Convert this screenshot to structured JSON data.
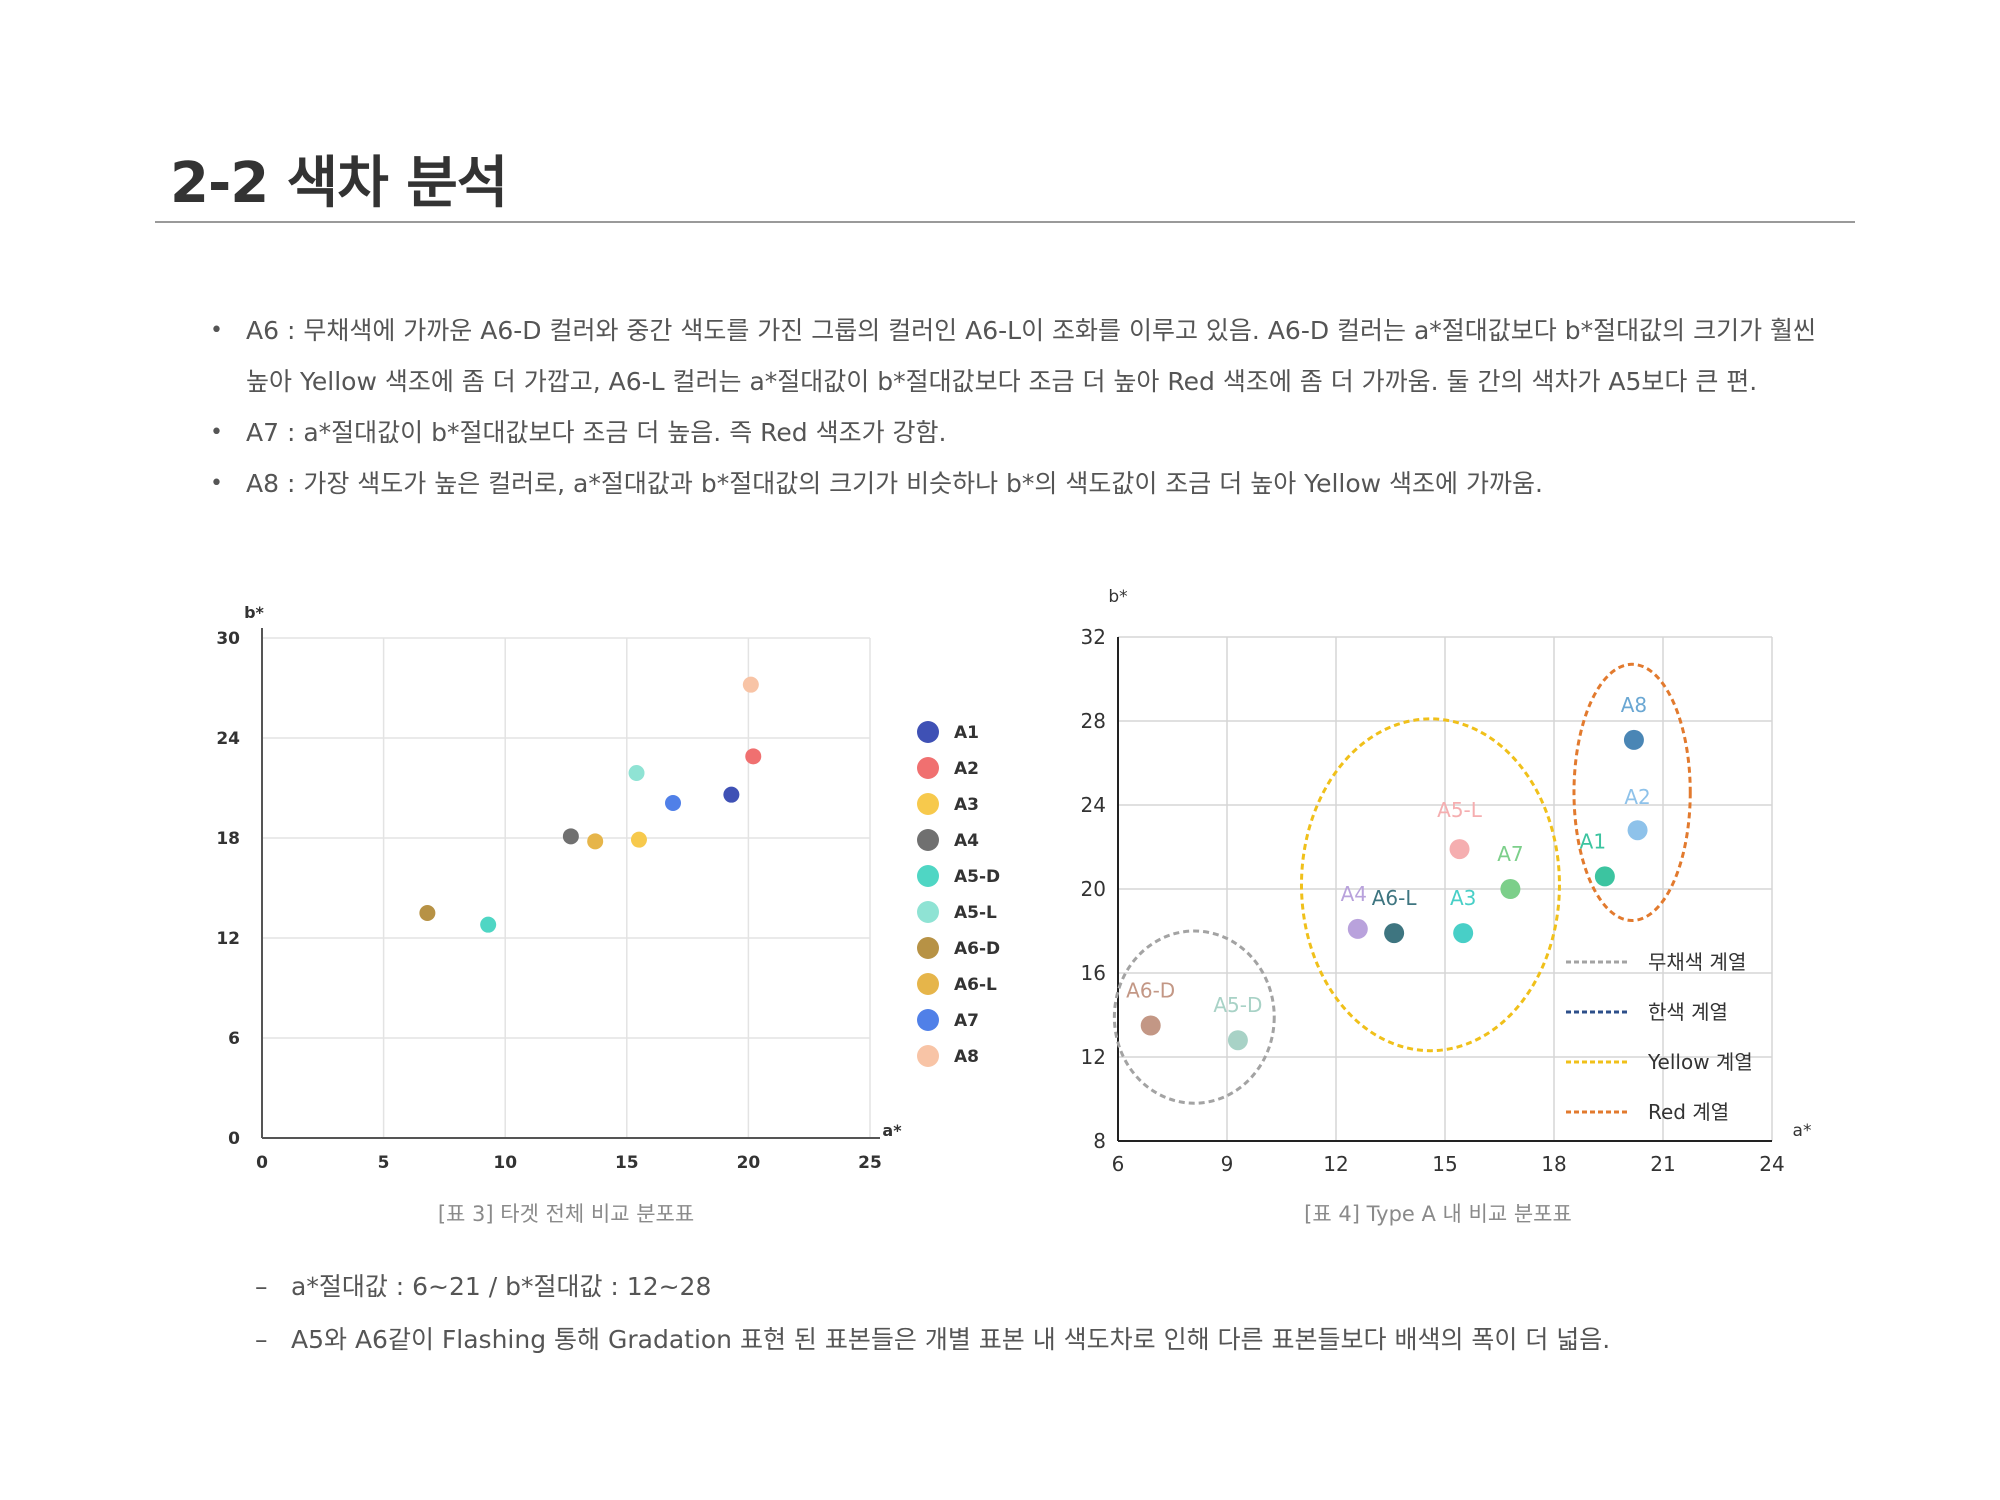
{
  "page": {
    "title": "2-2 색차 분석",
    "bullets": [
      "A6 : 무채색에 가까운 A6-D 컬러와 중간 색도를 가진 그룹의 컬러인 A6-L이 조화를 이루고 있음. A6-D 컬러는 a*절대값보다 b*절대값의 크기가 훨씬 높아 Yellow 색조에 좀 더 가깝고, A6-L 컬러는 a*절대값이 b*절대값보다 조금 더 높아 Red 색조에 좀 더 가까움. 둘 간의 색차가 A5보다 큰 편.",
      "A7 : a*절대값이 b*절대값보다 조금 더 높음. 즉 Red 색조가 강함.",
      "A8 : 가장 색도가 높은 컬러로, a*절대값과 b*절대값의 크기가 비슷하나 b*의 색도값이 조금 더 높아 Yellow 색조에 가까움."
    ],
    "bullet_symbol": "•",
    "notes": [
      "a*절대값 : 6~21 / b*절대값 : 12~28",
      "A5와 A6같이 Flashing 통해 Gradation 표현 된 표본들은 개별 표본 내 색도차로 인해 다른 표본들보다 배색의 폭이 더 넓음."
    ],
    "note_symbol": "–"
  },
  "chart_data": [
    {
      "type": "scatter",
      "caption": "[표 3] 타겟 전체 비교 분포표",
      "xlabel": "a*",
      "ylabel": "b*",
      "xlim": [
        0,
        25
      ],
      "ylim": [
        0,
        30
      ],
      "xticks": [
        0,
        5,
        10,
        15,
        20,
        25
      ],
      "yticks": [
        0,
        6,
        12,
        18,
        24,
        30
      ],
      "grid": true,
      "legend_position": "right",
      "series": [
        {
          "name": "A1",
          "color": "#3f51b5",
          "points": [
            [
              19.3,
              20.6
            ]
          ]
        },
        {
          "name": "A2",
          "color": "#f07070",
          "points": [
            [
              20.2,
              22.9
            ]
          ]
        },
        {
          "name": "A3",
          "color": "#f7c94c",
          "points": [
            [
              15.5,
              17.9
            ]
          ]
        },
        {
          "name": "A4",
          "color": "#707070",
          "points": [
            [
              12.7,
              18.1
            ]
          ]
        },
        {
          "name": "A5-D",
          "color": "#4fd6c4",
          "points": [
            [
              9.3,
              12.8
            ]
          ]
        },
        {
          "name": "A5-L",
          "color": "#8fe3d4",
          "points": [
            [
              15.4,
              21.9
            ]
          ]
        },
        {
          "name": "A6-D",
          "color": "#b79245",
          "points": [
            [
              6.8,
              13.5
            ]
          ]
        },
        {
          "name": "A6-L",
          "color": "#e6b54a",
          "points": [
            [
              13.7,
              17.8
            ]
          ]
        },
        {
          "name": "A7",
          "color": "#5080e8",
          "points": [
            [
              16.9,
              20.1
            ]
          ]
        },
        {
          "name": "A8",
          "color": "#f8c4a6",
          "points": [
            [
              20.1,
              27.2
            ]
          ]
        }
      ]
    },
    {
      "type": "scatter",
      "caption": "[표 4] Type A 내 비교 분포표",
      "xlabel": "a*",
      "ylabel": "b*",
      "xlim": [
        6,
        24
      ],
      "ylim": [
        8,
        32
      ],
      "xticks": [
        6,
        9,
        12,
        15,
        18,
        21,
        24
      ],
      "yticks": [
        8,
        12,
        16,
        20,
        24,
        28,
        32
      ],
      "grid": true,
      "legend_position": "bottom-right",
      "points": [
        {
          "label": "A8",
          "x": 20.2,
          "y": 27.1,
          "color": "#4a86b5",
          "label_color": "#6aa7d3"
        },
        {
          "label": "A2",
          "x": 20.3,
          "y": 22.8,
          "color": "#8ec2ea",
          "label_color": "#8ec2ea"
        },
        {
          "label": "A1",
          "x": 19.4,
          "y": 20.6,
          "color": "#3cc4a0",
          "label_color": "#3cc4a0"
        },
        {
          "label": "A5-L",
          "x": 15.4,
          "y": 21.9,
          "color": "#f5aeb0",
          "label_color": "#f5aeb0"
        },
        {
          "label": "A7",
          "x": 16.8,
          "y": 20.0,
          "color": "#7ccf8a",
          "label_color": "#7ccf8a"
        },
        {
          "label": "A4",
          "x": 12.6,
          "y": 18.1,
          "color": "#b9a2dc",
          "label_color": "#b9a2dc"
        },
        {
          "label": "A6-L",
          "x": 13.6,
          "y": 17.9,
          "color": "#3e7580",
          "label_color": "#3e7580"
        },
        {
          "label": "A3",
          "x": 15.5,
          "y": 17.9,
          "color": "#48cfc7",
          "label_color": "#48cfc7"
        },
        {
          "label": "A6-D",
          "x": 6.9,
          "y": 13.5,
          "color": "#c39785",
          "label_color": "#c39785"
        },
        {
          "label": "A5-D",
          "x": 9.3,
          "y": 12.8,
          "color": "#a8d2c6",
          "label_color": "#a8d2c6"
        }
      ],
      "groups": [
        {
          "name": "무채색 계열",
          "color": "#a3a3a3"
        },
        {
          "name": "한색 계열",
          "color": "#2d4f8a"
        },
        {
          "name": "Yellow 계열",
          "color": "#f0c01a"
        },
        {
          "name": "Red 계열",
          "color": "#e27a2e"
        }
      ]
    }
  ]
}
